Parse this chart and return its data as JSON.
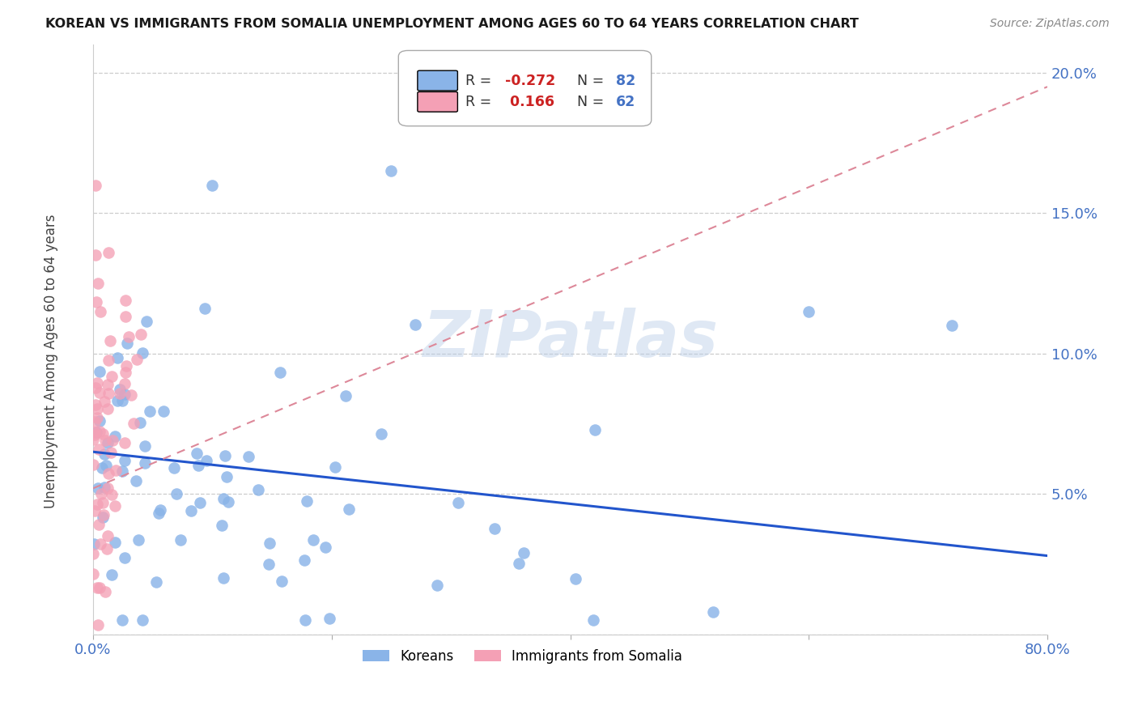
{
  "title": "KOREAN VS IMMIGRANTS FROM SOMALIA UNEMPLOYMENT AMONG AGES 60 TO 64 YEARS CORRELATION CHART",
  "source": "Source: ZipAtlas.com",
  "ylabel": "Unemployment Among Ages 60 to 64 years",
  "ylim": [
    0.0,
    0.21
  ],
  "xlim": [
    0.0,
    0.8
  ],
  "korean_R": -0.272,
  "korean_N": 82,
  "somalia_R": 0.166,
  "somalia_N": 62,
  "korean_color": "#8ab4e8",
  "somalia_color": "#f4a0b5",
  "korean_line_color": "#2255cc",
  "somalia_line_color": "#dd8899",
  "watermark": "ZIPatlas",
  "legend_label_1": "Koreans",
  "legend_label_2": "Immigrants from Somalia",
  "tick_color": "#4472c4",
  "title_color": "#1a1a1a",
  "source_color": "#888888",
  "ylabel_color": "#444444",
  "grid_color": "#cccccc",
  "legend_edge_color": "#aaaaaa"
}
